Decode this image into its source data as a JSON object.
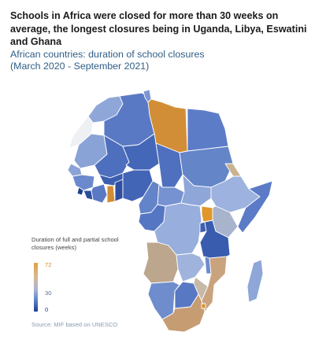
{
  "headline": "Schools in Africa were closed for more than 30 weeks on average, the longest closures being in Uganda, Libya, Eswatini and Ghana",
  "subtitle_line1": "African countries: duration of school closures",
  "subtitle_line2": "(March 2020 - September 2021)",
  "legend": {
    "title": "Duration of full and partial school closures (weeks)",
    "max_label": "72",
    "mid_label": "30",
    "min_label": "0",
    "scale_max": 72,
    "scale_mid": 30,
    "scale_min": 0
  },
  "source": "Source: MIF based on UNESCO",
  "colors": {
    "high": "#d48f2e",
    "mid": "#b9a58c",
    "low": "#7d9ad3",
    "lowest": "#1d3f8d"
  }
}
